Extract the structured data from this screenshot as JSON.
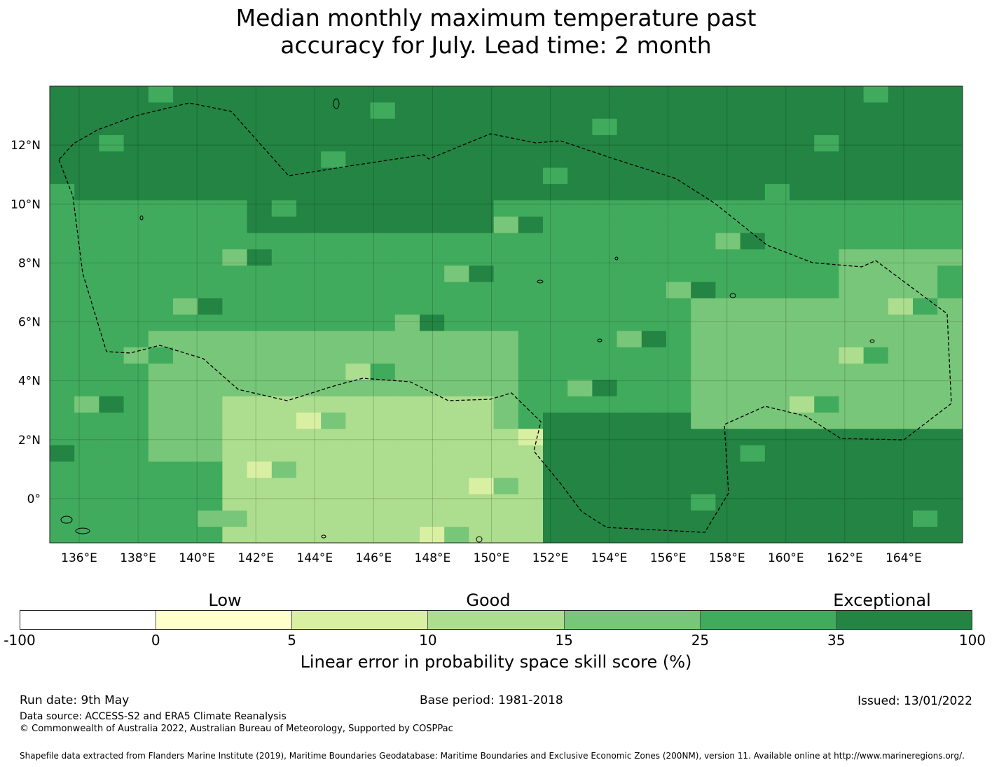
{
  "title": {
    "line1": "Median monthly maximum temperature past",
    "line2": "accuracy for July. Lead time: 2 month"
  },
  "map": {
    "lon_range": [
      135,
      166
    ],
    "lat_range": [
      -1.5,
      14
    ],
    "lon_ticks": [
      "136°E",
      "138°E",
      "140°E",
      "142°E",
      "144°E",
      "146°E",
      "148°E",
      "150°E",
      "152°E",
      "154°E",
      "156°E",
      "158°E",
      "160°E",
      "162°E",
      "164°E"
    ],
    "lat_ticks": [
      "12°N",
      "10°N",
      "8°N",
      "6°N",
      "4°N",
      "2°N",
      "0°"
    ],
    "gridlines": true
  },
  "colorbar": {
    "colors": [
      "#ffffff",
      "#ffffcc",
      "#d9f0a3",
      "#addd8e",
      "#78c679",
      "#41ab5d",
      "#238443"
    ],
    "ticks": [
      "-100",
      "0",
      "5",
      "10",
      "15",
      "25",
      "35",
      "100"
    ],
    "categories": {
      "low": "Low",
      "good": "Good",
      "exceptional": "Exceptional"
    },
    "label": "Linear error in probability space skill score (%)"
  },
  "footer": {
    "run_date": "Run date: 9th May",
    "base_period": "Base period: 1981-2018",
    "issued": "Issued: 13/01/2022",
    "data_source": "Data source: ACCESS-S2 and ERA5 Climate Reanalysis",
    "copyright": "© Commonwealth of Australia 2022, Australian Bureau of Meteorology, Supported by COSPPac",
    "shapefile": "Shapefile data extracted from Flanders Marine Institute (2019), Maritime Boundaries Geodatabase: Maritime Boundaries and Exclusive Economic Zones (200NM), version 11. Available online at http://www.marineregions.org/."
  }
}
